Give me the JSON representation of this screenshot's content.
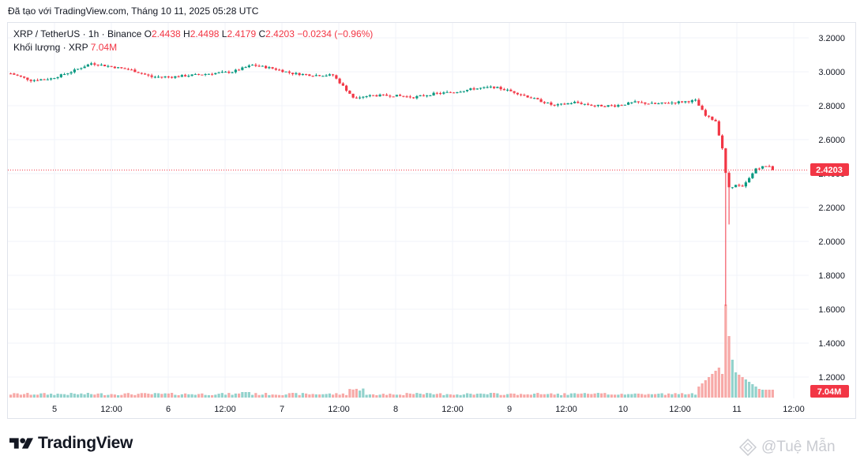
{
  "caption": "Đã tạo với TradingView.com, Tháng 10 11, 2025 05:28 UTC",
  "legend": {
    "symbol": "XRP / TetherUS · 1h · Binance",
    "o_label": "O",
    "o_value": "2.4438",
    "h_label": "H",
    "h_value": "2.4498",
    "l_label": "L",
    "l_value": "2.4179",
    "c_label": "C",
    "c_value": "2.4203",
    "change": "−0.0234 (−0.96%)",
    "volume_label": "Khối lượng · XRP",
    "volume_value": "7.04M"
  },
  "price_tag": "2.4203",
  "volume_tag": "7.04M",
  "brand": "TradingView",
  "watermark": "@Tuệ Mẫn",
  "colors": {
    "up": "#089981",
    "down": "#f23645",
    "up_vol": "#92d2cc",
    "down_vol": "#f7a9a7",
    "grid": "#f0f3fa"
  },
  "chart_data": {
    "type": "candlestick",
    "y_ticks": [
      "3.2000",
      "3.0000",
      "2.8000",
      "2.6000",
      "2.4000",
      "2.2000",
      "2.0000",
      "1.8000",
      "1.6000",
      "1.4000",
      "1.2000"
    ],
    "ylim": [
      1.1,
      3.25
    ],
    "x_ticks": [
      "5",
      "12:00",
      "6",
      "12:00",
      "7",
      "12:00",
      "8",
      "12:00",
      "9",
      "12:00",
      "10",
      "12:00",
      "11",
      "12:00"
    ],
    "last_price": 2.4203,
    "ohlc_keypoints": [
      [
        0,
        2.99
      ],
      [
        6,
        2.95
      ],
      [
        12,
        2.96
      ],
      [
        18,
        3.0
      ],
      [
        24,
        3.05
      ],
      [
        30,
        3.03
      ],
      [
        36,
        3.01
      ],
      [
        42,
        2.97
      ],
      [
        48,
        2.97
      ],
      [
        54,
        2.98
      ],
      [
        60,
        2.99
      ],
      [
        66,
        3.0
      ],
      [
        72,
        3.04
      ],
      [
        78,
        3.02
      ],
      [
        84,
        2.99
      ],
      [
        90,
        2.98
      ],
      [
        96,
        2.98
      ],
      [
        102,
        2.85
      ],
      [
        108,
        2.86
      ],
      [
        114,
        2.86
      ],
      [
        120,
        2.85
      ],
      [
        126,
        2.87
      ],
      [
        132,
        2.88
      ],
      [
        138,
        2.9
      ],
      [
        144,
        2.91
      ],
      [
        150,
        2.88
      ],
      [
        156,
        2.84
      ],
      [
        162,
        2.8
      ],
      [
        168,
        2.82
      ],
      [
        174,
        2.8
      ],
      [
        180,
        2.8
      ],
      [
        186,
        2.82
      ],
      [
        192,
        2.81
      ],
      [
        198,
        2.82
      ],
      [
        204,
        2.83
      ],
      [
        207,
        2.74
      ],
      [
        210,
        2.71
      ],
      [
        212,
        2.55
      ],
      [
        213,
        2.4
      ],
      [
        214,
        2.32
      ],
      [
        216,
        2.33
      ],
      [
        218,
        2.32
      ],
      [
        220,
        2.37
      ],
      [
        222,
        2.43
      ],
      [
        224,
        2.44
      ],
      [
        226,
        2.4438
      ],
      [
        227,
        2.4203
      ]
    ],
    "crash_wick_low": 1.62,
    "volume_peak": "crash candle"
  }
}
